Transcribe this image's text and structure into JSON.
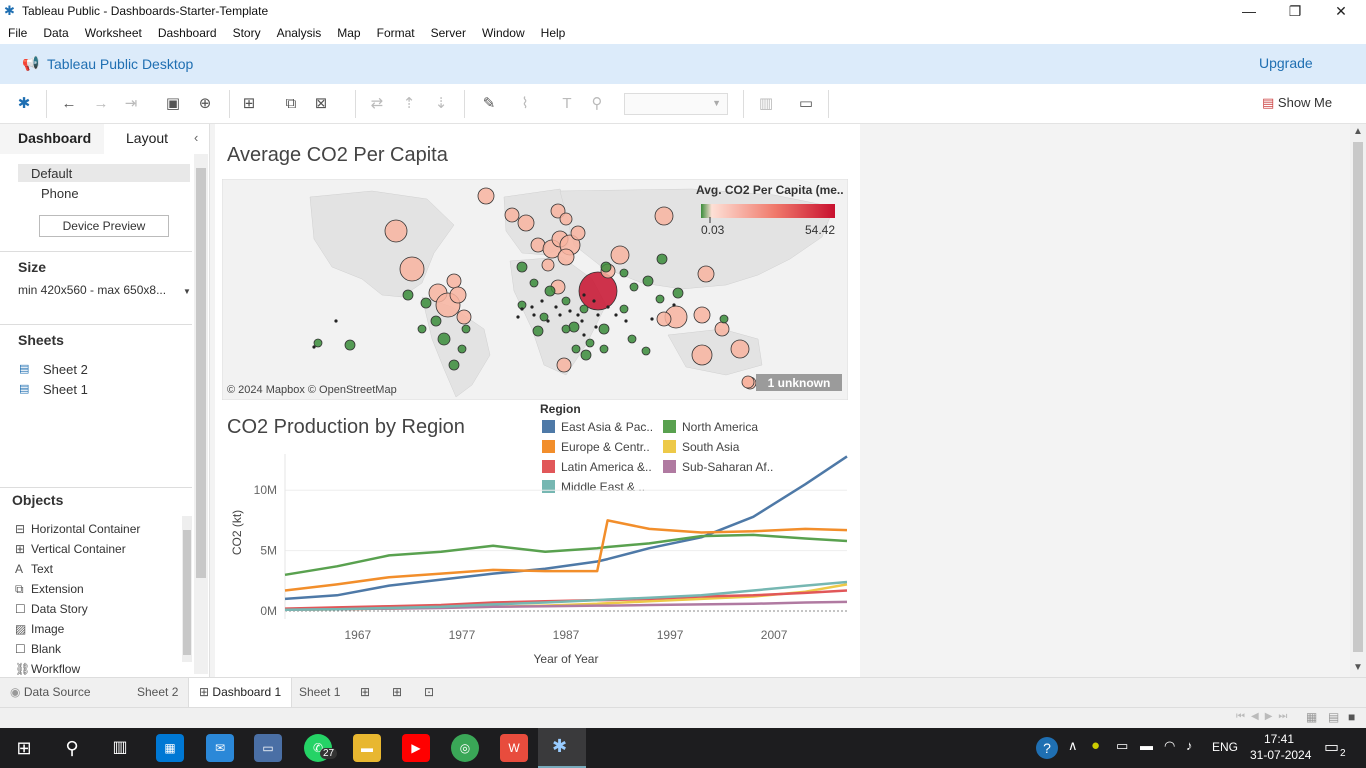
{
  "window": {
    "title": "Tableau Public - Dashboards-Starter-Template"
  },
  "menu": [
    "File",
    "Data",
    "Worksheet",
    "Dashboard",
    "Story",
    "Analysis",
    "Map",
    "Format",
    "Server",
    "Window",
    "Help"
  ],
  "banner": {
    "title": "Tableau Public Desktop",
    "upgrade": "Upgrade"
  },
  "toolbar": {
    "show_me": "Show Me"
  },
  "left_pane": {
    "tabs": [
      "Dashboard",
      "Layout"
    ],
    "devices": [
      "Default",
      "Phone"
    ],
    "device_preview": "Device Preview",
    "size_title": "Size",
    "size_value": "min 420x560 - max 650x8...",
    "sheets_title": "Sheets",
    "sheets": [
      "Sheet 2",
      "Sheet 1"
    ],
    "objects_title": "Objects",
    "objects": [
      "Horizontal Container",
      "Vertical Container",
      "Text",
      "Extension",
      "Data Story",
      "Image",
      "Blank",
      "Workflow"
    ]
  },
  "map": {
    "title": "Average CO2 Per Capita",
    "legend_title": "Avg. CO2 Per Capita (me..",
    "legend_min": "0.03",
    "legend_max": "54.42",
    "attribution": "© 2024 Mapbox © OpenStreetMap",
    "unknown": "1 unknown",
    "colors": {
      "low": "#3a8c3a",
      "mid": "#f8b4a0",
      "high": "#c8102e"
    }
  },
  "chart": {
    "title": "CO2 Production by Region",
    "legend_title": "Region",
    "legend_items": [
      {
        "label": "East Asia & Pac..",
        "color": "#4e79a7"
      },
      {
        "label": "North America",
        "color": "#59a14f"
      },
      {
        "label": "Europe & Centr..",
        "color": "#f28e2b"
      },
      {
        "label": "South Asia",
        "color": "#edc948"
      },
      {
        "label": "Latin America &..",
        "color": "#e15759"
      },
      {
        "label": "Sub-Saharan Af..",
        "color": "#b07aa1"
      },
      {
        "label": "Middle East & ..",
        "color": "#76b7b2"
      }
    ]
  },
  "chart_data": {
    "type": "line",
    "title": "CO2 Production by Region",
    "xlabel": "Year of Year",
    "ylabel": "CO2 (kt)",
    "x_ticks": [
      "1967",
      "1977",
      "1987",
      "1997",
      "2007"
    ],
    "y_ticks": [
      "0M",
      "5M",
      "10M"
    ],
    "xlim": [
      1960,
      2014
    ],
    "ylim": [
      0,
      13000000
    ],
    "x": [
      1960,
      1965,
      1970,
      1975,
      1980,
      1985,
      1990,
      1991,
      1995,
      2000,
      2005,
      2010,
      2014
    ],
    "series": [
      {
        "name": "East Asia & Pac..",
        "color": "#4e79a7",
        "values": [
          1000000,
          1300000,
          2100000,
          2600000,
          3100000,
          3500000,
          4100000,
          4300000,
          5200000,
          6100000,
          7800000,
          10500000,
          12800000
        ]
      },
      {
        "name": "North America",
        "color": "#59a14f",
        "values": [
          3000000,
          3700000,
          4600000,
          4900000,
          5400000,
          4900000,
          5200000,
          5300000,
          5600000,
          6200000,
          6300000,
          6000000,
          5800000
        ]
      },
      {
        "name": "Europe & Centr..",
        "color": "#f28e2b",
        "values": [
          1700000,
          2200000,
          2800000,
          3100000,
          3400000,
          3300000,
          3300000,
          7500000,
          6800000,
          6500000,
          6600000,
          6800000,
          6700000
        ]
      },
      {
        "name": "South Asia",
        "color": "#edc948",
        "values": [
          100000,
          150000,
          200000,
          280000,
          350000,
          450000,
          600000,
          650000,
          800000,
          1000000,
          1200000,
          1600000,
          2200000
        ]
      },
      {
        "name": "Latin America &..",
        "color": "#e15759",
        "values": [
          200000,
          300000,
          400000,
          500000,
          700000,
          800000,
          900000,
          900000,
          1000000,
          1200000,
          1300000,
          1500000,
          1700000
        ]
      },
      {
        "name": "Sub-Saharan Af..",
        "color": "#b07aa1",
        "values": [
          100000,
          150000,
          200000,
          250000,
          350000,
          400000,
          450000,
          450000,
          500000,
          550000,
          600000,
          700000,
          750000
        ]
      },
      {
        "name": "Middle East & ..",
        "color": "#76b7b2",
        "values": [
          100000,
          150000,
          250000,
          350000,
          550000,
          700000,
          900000,
          950000,
          1100000,
          1300000,
          1700000,
          2100000,
          2400000
        ]
      }
    ]
  },
  "sheet_tabs": [
    "Data Source",
    "Sheet 2",
    "Dashboard 1",
    "Sheet 1"
  ],
  "taskbar": {
    "time": "17:41",
    "date": "31-07-2024",
    "lang": "ENG",
    "badge": "27",
    "notif": "2"
  }
}
